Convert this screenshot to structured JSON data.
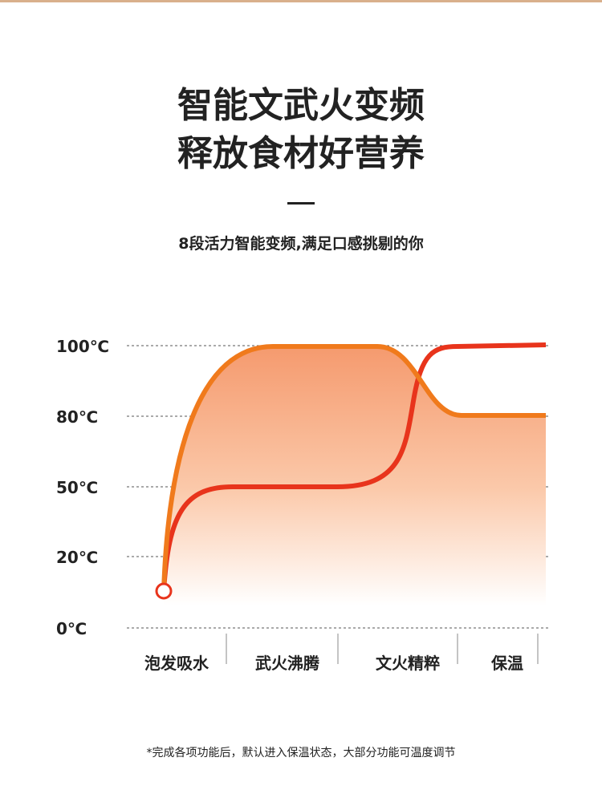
{
  "header": {
    "title_lines": [
      "智能文武火变频",
      "释放食材好营养"
    ],
    "subtitle": "8段活力智能变频,满足口感挑剔的你"
  },
  "temperature_labels": [
    "100℃",
    "80℃",
    "50℃",
    "20℃",
    "0℃"
  ],
  "stages": [
    "泡发吸水",
    "武火沸腾",
    "文火精粹",
    "保温"
  ],
  "footnote": "*完成各项功能后，默认进入保温状态，大部分功能可温度调节"
}
